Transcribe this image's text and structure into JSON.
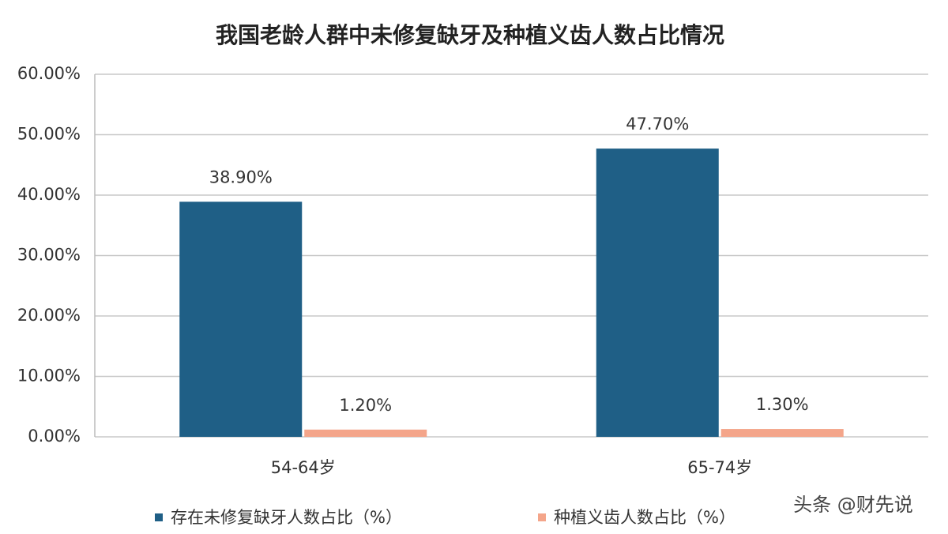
{
  "chart_data": {
    "type": "bar",
    "title": "我国老龄人群中未修复缺牙及种植义齿人数占比情况",
    "categories": [
      "54-64岁",
      "65-74岁"
    ],
    "series": [
      {
        "name": "存在未修复缺牙人数占比（%）",
        "color": "#1f5f86",
        "values": [
          38.9,
          47.7
        ],
        "value_labels": [
          "38.90%",
          "47.70%"
        ]
      },
      {
        "name": "种植义齿人数占比（%）",
        "color": "#f4a58a",
        "values": [
          1.2,
          1.3
        ],
        "value_labels": [
          "1.20%",
          "1.30%"
        ]
      }
    ],
    "ylim": [
      0,
      60
    ],
    "yticks": [
      {
        "value": 0,
        "label": "0.00%"
      },
      {
        "value": 10,
        "label": "10.00%"
      },
      {
        "value": 20,
        "label": "20.00%"
      },
      {
        "value": 30,
        "label": "30.00%"
      },
      {
        "value": 40,
        "label": "40.00%"
      },
      {
        "value": 50,
        "label": "50.00%"
      },
      {
        "value": 60,
        "label": "60.00%"
      }
    ],
    "grid": true,
    "watermark": "头条 @财先说"
  }
}
